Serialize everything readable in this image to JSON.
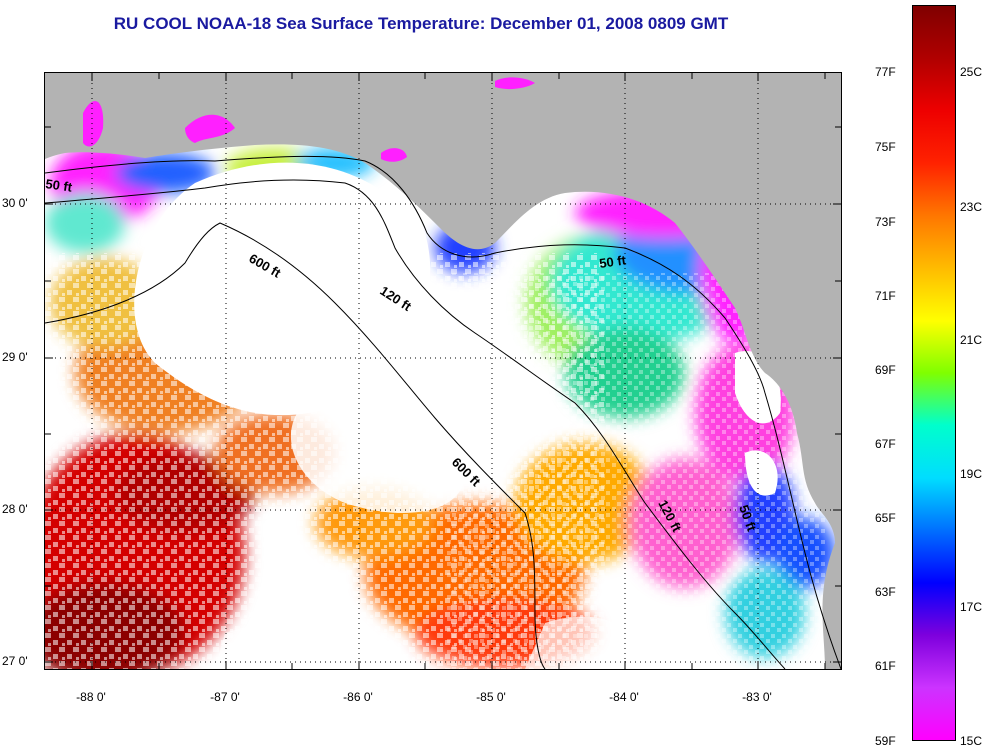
{
  "title": "RU COOL  NOAA-18  Sea Surface Temperature:  December 01, 2008 0809 GMT",
  "map": {
    "latitude_labels": [
      "30 0'",
      "29 0'",
      "28 0'",
      "27 0'"
    ],
    "longitude_labels": [
      "-88 0'",
      "-87 0'",
      "-86 0'",
      "-85 0'",
      "-84 0'",
      "-83 0'"
    ],
    "contour_labels": [
      "50 ft",
      "600 ft",
      "120 ft",
      "50 ft",
      "600 ft",
      "120 ft",
      "50 ft"
    ],
    "colors": {
      "land": "#b3b3b3",
      "cloud": "#ffffff",
      "contour": "#000000",
      "grid": "#000000"
    }
  },
  "colorbar": {
    "fahrenheit_labels": [
      "77F",
      "75F",
      "73F",
      "71F",
      "69F",
      "67F",
      "65F",
      "63F",
      "61F",
      "59F"
    ],
    "celsius_labels": [
      "25C",
      "23C",
      "21C",
      "19C",
      "17C",
      "15C"
    ],
    "gradient_stops": [
      "#ff00ff",
      "#cc33ff",
      "#7d00dd",
      "#0000ff",
      "#0070ff",
      "#00ddff",
      "#00ffcc",
      "#7fff00",
      "#ffff00",
      "#ffbb00",
      "#ff7700",
      "#ff2200",
      "#ee0000",
      "#b00000",
      "#800000"
    ]
  }
}
